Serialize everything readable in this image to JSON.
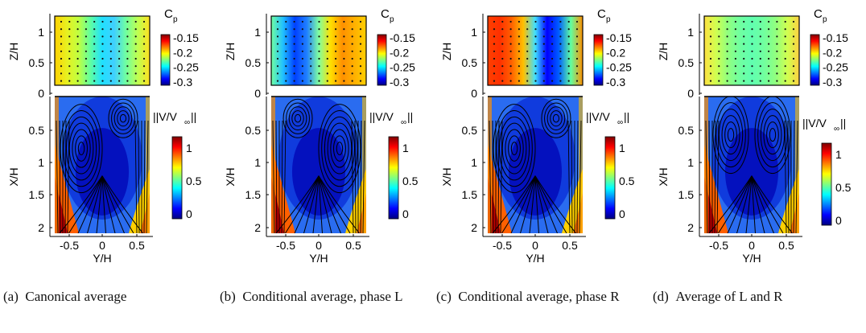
{
  "figure": {
    "panels": [
      {
        "id": "a",
        "tag": "(a)",
        "caption": "Canonical average",
        "cp_pattern": "left-high",
        "vortex_side": "right"
      },
      {
        "id": "b",
        "tag": "(b)",
        "caption": "Conditional average, phase L",
        "cp_pattern": "right-high",
        "vortex_side": "left"
      },
      {
        "id": "c",
        "tag": "(c)",
        "caption": "Conditional average, phase R",
        "cp_pattern": "left-high-strong",
        "vortex_side": "right"
      },
      {
        "id": "d",
        "tag": "(d)",
        "caption": "Average of L and R",
        "cp_pattern": "symmetric",
        "vortex_side": "both"
      }
    ],
    "top_plot": {
      "ylabel": "Z/H",
      "yticks": [
        "1",
        "0.5",
        "0"
      ],
      "colorbar_title": "C",
      "colorbar_title_sub": "p",
      "colorbar_ticks": [
        "-0.15",
        "-0.2",
        "-0.25",
        "-0.3"
      ]
    },
    "bottom_plot": {
      "ylabel": "X/H",
      "yticks": [
        "0.5",
        "1",
        "1.5",
        "2"
      ],
      "xlabel": "Y/H",
      "xticks": [
        "-0.5",
        "0",
        "0.5"
      ],
      "colorbar_title": "||V/V",
      "colorbar_title_sub": "∞",
      "colorbar_title_end": "||",
      "colorbar_ticks": [
        "1",
        "0.5",
        "0"
      ]
    },
    "colors": {
      "jet": [
        "#00007f",
        "#0000ff",
        "#0080ff",
        "#00ffff",
        "#80ff80",
        "#ffff00",
        "#ff8000",
        "#ff0000",
        "#7f0000"
      ]
    }
  }
}
